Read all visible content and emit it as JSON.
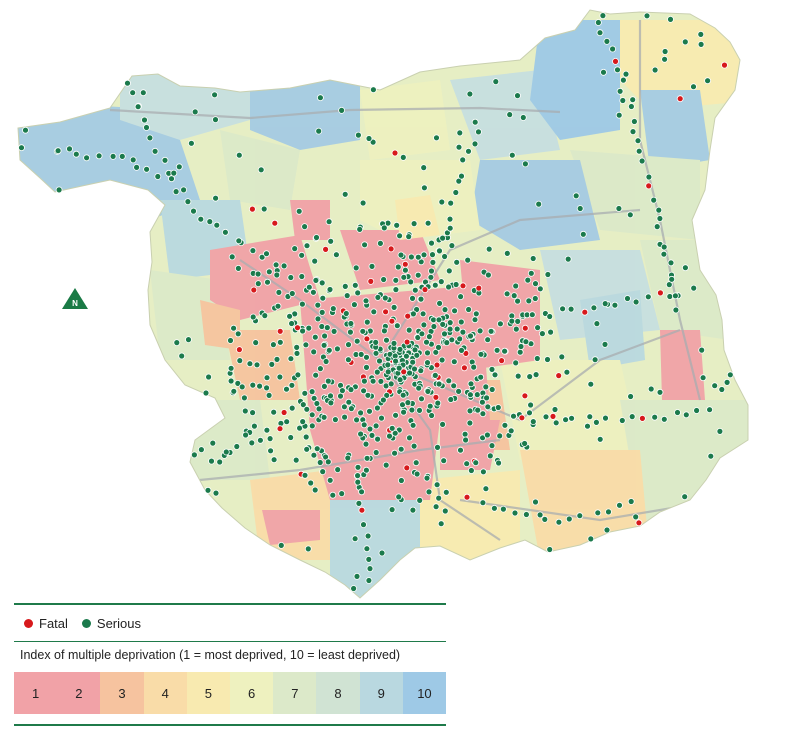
{
  "map": {
    "north_label": "N",
    "north_color": "#1a7a45",
    "fatal_color": "#d7191c",
    "serious_color": "#1b7a4c"
  },
  "legend": {
    "fatal_label": "Fatal",
    "serious_label": "Serious",
    "title": "Index of multiple deprivation (1 = most deprived, 10 = least deprived)",
    "deciles": [
      {
        "label": "1",
        "color": "#f1a2a7"
      },
      {
        "label": "2",
        "color": "#f1a2a7"
      },
      {
        "label": "3",
        "color": "#f6c39f"
      },
      {
        "label": "4",
        "color": "#f9dca8"
      },
      {
        "label": "5",
        "color": "#f8eab0"
      },
      {
        "label": "6",
        "color": "#eef1bf"
      },
      {
        "label": "7",
        "color": "#dce9c9"
      },
      {
        "label": "8",
        "color": "#d0e3d3"
      },
      {
        "label": "9",
        "color": "#b9d8e0"
      },
      {
        "label": "10",
        "color": "#9ec9e6"
      }
    ]
  }
}
